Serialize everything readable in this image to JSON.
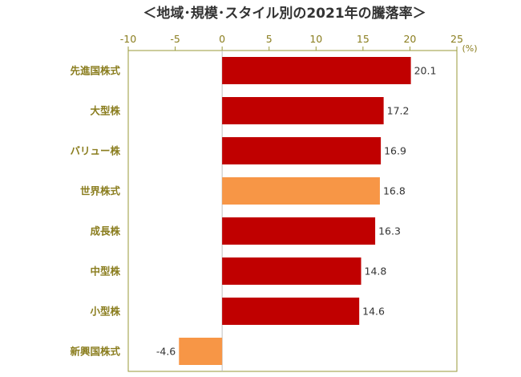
{
  "chart_data": {
    "type": "bar",
    "orientation": "horizontal",
    "title": "＜地域･規模･スタイル別の2021年の騰落率＞",
    "unit": "(%)",
    "xlim": [
      -10,
      25
    ],
    "ticks": [
      -10,
      -5,
      0,
      5,
      10,
      15,
      20,
      25
    ],
    "tick_labels": [
      "-10",
      "-5",
      "0",
      "5",
      "10",
      "15",
      "20",
      "25"
    ],
    "categories": [
      "先進国株式",
      "大型株",
      "バリュー株",
      "世界株式",
      "成長株",
      "中型株",
      "小型株",
      "新興国株式"
    ],
    "values": [
      20.1,
      17.2,
      16.9,
      16.8,
      16.3,
      14.8,
      14.6,
      -4.6
    ],
    "value_labels": [
      "20.1",
      "17.2",
      "16.9",
      "16.8",
      "16.3",
      "14.8",
      "14.6",
      "-4.6"
    ],
    "bar_colors": [
      "#c00000",
      "#c00000",
      "#c00000",
      "#f79646",
      "#c00000",
      "#c00000",
      "#c00000",
      "#f79646"
    ],
    "legend": "none",
    "grid": false
  },
  "colors": {
    "axis_frame": "#9a9a3a",
    "zero_line": "#bfbfbf",
    "label_text": "#8a7d1e"
  }
}
